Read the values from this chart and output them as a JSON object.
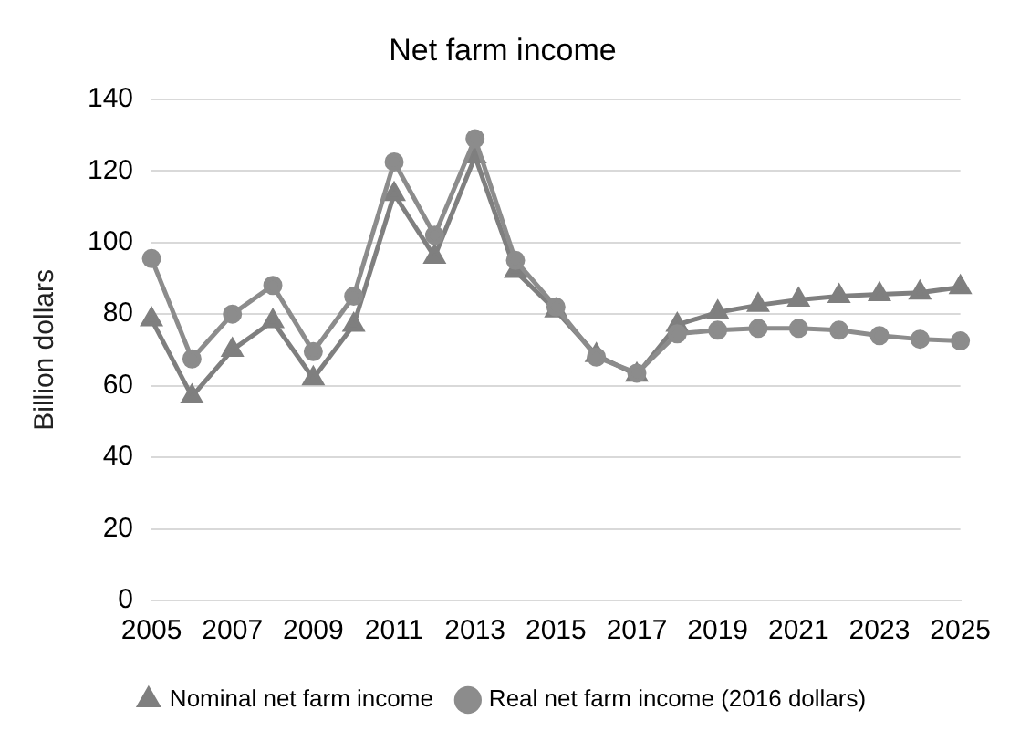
{
  "chart_data": {
    "type": "line",
    "title": "Net farm income",
    "ylabel": "Billion dollars",
    "categories": [
      "2005",
      null,
      "2007",
      null,
      "2009",
      null,
      "2011",
      null,
      "2013",
      null,
      "2015",
      null,
      "2017",
      null,
      "2019",
      null,
      "2021",
      null,
      "2023",
      null,
      "2025"
    ],
    "series": [
      {
        "name": "Nominal net farm income",
        "color": "#7f7f7f",
        "marker": "triangle",
        "values": [
          78.5,
          57,
          70,
          78,
          62,
          77,
          113.5,
          96,
          124,
          92,
          81,
          68.5,
          63,
          77,
          80.5,
          82.5,
          84,
          85,
          85.5,
          86,
          87.5
        ]
      },
      {
        "name": "Real net farm income (2016 dollars)",
        "color": "#8c8c8c",
        "marker": "circle",
        "values": [
          95.5,
          67.5,
          80,
          88,
          69.5,
          85,
          122.5,
          102,
          129,
          95,
          82,
          68,
          63.5,
          74.5,
          75.5,
          76,
          76,
          75.5,
          74,
          73,
          72.5
        ]
      }
    ],
    "ylim": [
      0,
      140
    ],
    "yticks": [
      0,
      20,
      40,
      60,
      80,
      100,
      120,
      140
    ],
    "grid": "y",
    "legend": "bottom"
  }
}
